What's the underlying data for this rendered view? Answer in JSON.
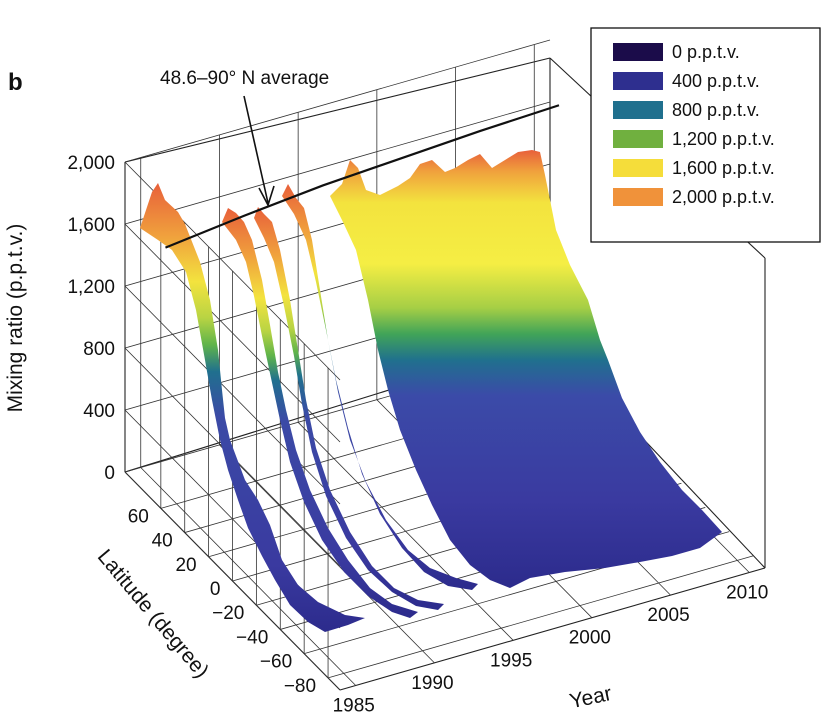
{
  "panel_label": "b",
  "annotation": "48.6–90° N average",
  "colors": {
    "colormap": [
      "#1b0c4a",
      "#2e2f8f",
      "#20708e",
      "#5fb44a",
      "#f3e33e",
      "#f0a23d",
      "#e8603a"
    ]
  },
  "chart_data": {
    "type": "surface3d",
    "title": "",
    "zlabel": "Mixing ratio (p.p.t.v.)",
    "ylabel": "Latitude  (degree)",
    "xlabel": "Year",
    "z_ticks": [
      "0",
      "400",
      "800",
      "1,200",
      "1,600",
      "2,000"
    ],
    "z_tick_values": [
      0,
      400,
      800,
      1200,
      1600,
      2000
    ],
    "zlim": [
      0,
      2000
    ],
    "lat_ticks": [
      "60",
      "40",
      "20",
      "0",
      "−20",
      "−40",
      "−60",
      "−80"
    ],
    "lat_tick_values": [
      60,
      40,
      20,
      0,
      -20,
      -40,
      -60,
      -80
    ],
    "latlim": [
      -90,
      90
    ],
    "year_ticks": [
      "1985",
      "1990",
      "1995",
      "2000",
      "2005",
      "2010"
    ],
    "year_tick_values": [
      1985,
      1990,
      1995,
      2000,
      2005,
      2010
    ],
    "xlim": [
      1984,
      2011
    ],
    "grid": true,
    "legend": {
      "position": "top-right",
      "entries": [
        {
          "label": "0 p.p.t.v.",
          "value": 0,
          "color": "#1b0c4a"
        },
        {
          "label": "400 p.p.t.v.",
          "value": 400,
          "color": "#2e2f8f"
        },
        {
          "label": "800 p.p.t.v.",
          "value": 800,
          "color": "#20708e"
        },
        {
          "label": "1,200 p.p.t.v.",
          "value": 1200,
          "color": "#70b03f"
        },
        {
          "label": "1,600 p.p.t.v.",
          "value": 1600,
          "color": "#f5dd3a"
        },
        {
          "label": "2,000 p.p.t.v.",
          "value": 2000,
          "color": "#f0923a"
        }
      ]
    },
    "surface_segments": [
      {
        "year_start": 1984.8,
        "year_end": 1986.0,
        "peak_value": 1950
      },
      {
        "year_start": 1987.5,
        "year_end": 1988.2,
        "peak_value": 1720
      },
      {
        "year_start": 1988.8,
        "year_end": 1989.3,
        "peak_value": 1700
      },
      {
        "year_start": 1990.0,
        "year_end": 1990.6,
        "peak_value": 1850
      },
      {
        "year_start": 1991.6,
        "year_end": 2010.0,
        "peak_value": 2050
      }
    ],
    "average_line": {
      "name": "48.6–90° N average",
      "latitude_range": [
        48.6,
        90
      ],
      "x": [
        1985,
        1990,
        1995,
        2000,
        2005,
        2010
      ],
      "y": [
        1580,
        1640,
        1690,
        1720,
        1750,
        1770
      ]
    }
  }
}
